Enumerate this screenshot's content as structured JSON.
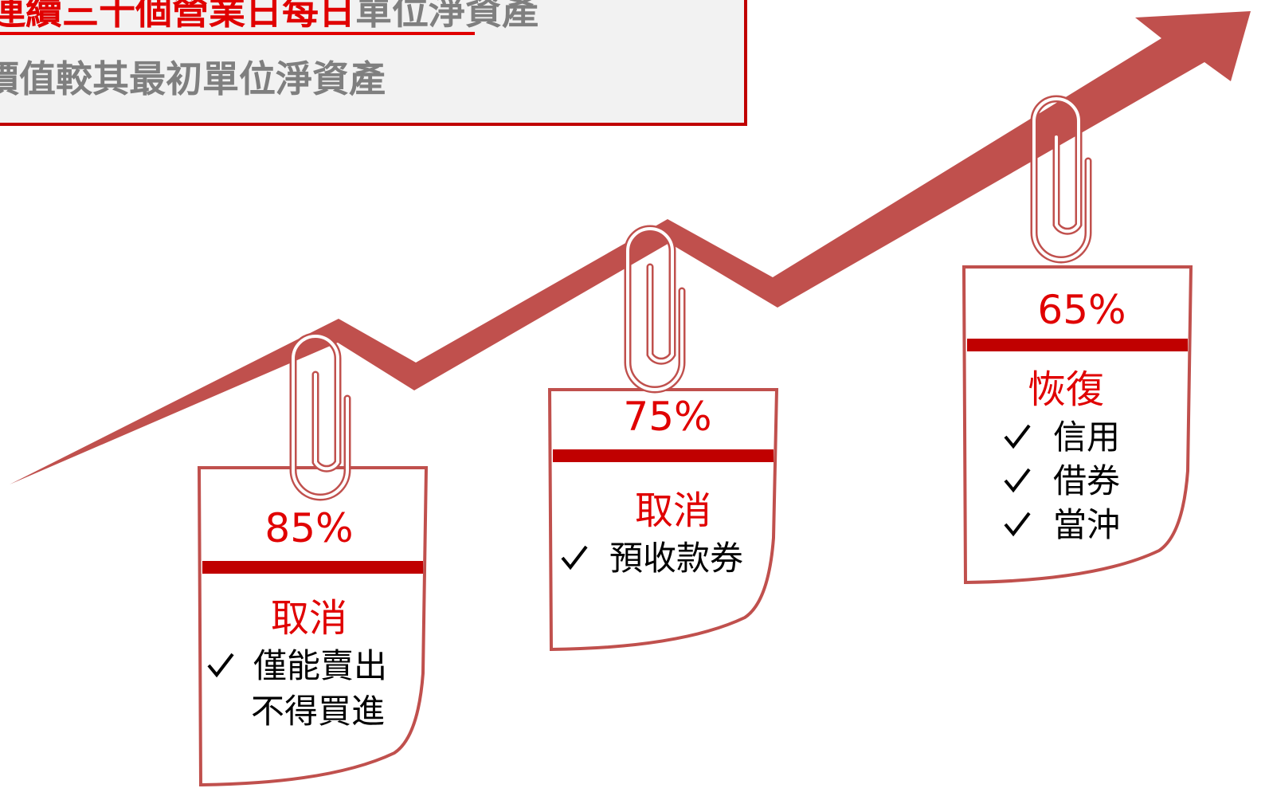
{
  "header": {
    "line1_highlight": "連續三十個營業日每日",
    "line1_rest": "單位淨資產",
    "line2": "價值較其最初單位淨資產"
  },
  "cards": [
    {
      "percent": "85%",
      "action": "取消",
      "items": [
        [
          "僅能賣出",
          "不得買進"
        ]
      ]
    },
    {
      "percent": "75%",
      "action": "取消",
      "items": [
        [
          "預收款券"
        ]
      ]
    },
    {
      "percent": "65%",
      "action": "恢復",
      "items": [
        [
          "信用"
        ],
        [
          "借券"
        ],
        [
          "當沖"
        ]
      ]
    }
  ]
}
